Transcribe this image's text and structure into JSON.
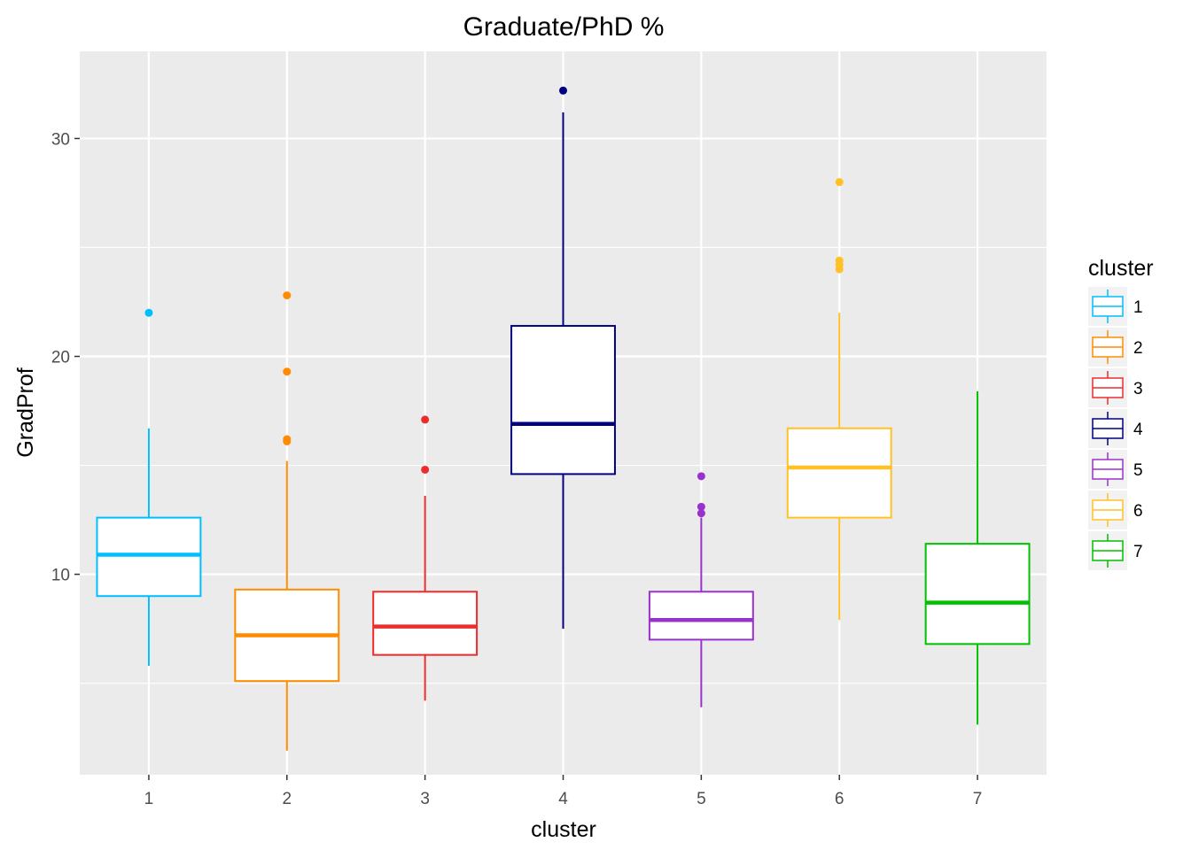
{
  "chart_data": {
    "type": "boxplot",
    "title": "Graduate/PhD %",
    "xlabel": "cluster",
    "ylabel": "GradProf",
    "ylim": [
      0.8,
      34.0
    ],
    "yticks": [
      10,
      20,
      30
    ],
    "grid": true,
    "legend": {
      "title": "cluster",
      "position": "right"
    },
    "categories": [
      "1",
      "2",
      "3",
      "4",
      "5",
      "6",
      "7"
    ],
    "series": [
      {
        "category": "1",
        "color": "#00BFFF",
        "min": 5.8,
        "q1": 9.0,
        "median": 10.9,
        "q3": 12.6,
        "max": 16.7,
        "outliers": [
          22.0
        ]
      },
      {
        "category": "2",
        "color": "#FF8C00",
        "min": 1.9,
        "q1": 5.1,
        "median": 7.2,
        "q3": 9.3,
        "max": 15.2,
        "outliers": [
          16.1,
          16.2,
          19.3,
          22.8
        ]
      },
      {
        "category": "3",
        "color": "#EE2C2C",
        "min": 4.2,
        "q1": 6.3,
        "median": 7.6,
        "q3": 9.2,
        "max": 13.6,
        "outliers": [
          14.8,
          17.1
        ]
      },
      {
        "category": "4",
        "color": "#000080",
        "min": 7.5,
        "q1": 14.6,
        "median": 16.9,
        "q3": 21.4,
        "max": 31.2,
        "outliers": [
          32.2
        ]
      },
      {
        "category": "5",
        "color": "#9932CC",
        "min": 3.9,
        "q1": 7.0,
        "median": 7.9,
        "q3": 9.2,
        "max": 12.6,
        "outliers": [
          12.8,
          13.1,
          14.5
        ]
      },
      {
        "category": "6",
        "color": "#FFC125",
        "min": 7.9,
        "q1": 12.6,
        "median": 14.9,
        "q3": 16.7,
        "max": 22.0,
        "outliers": [
          24.0,
          24.2,
          24.4,
          28.0
        ]
      },
      {
        "category": "7",
        "color": "#00C000",
        "min": 3.1,
        "q1": 6.8,
        "median": 8.7,
        "q3": 11.4,
        "max": 18.4,
        "outliers": []
      }
    ]
  }
}
